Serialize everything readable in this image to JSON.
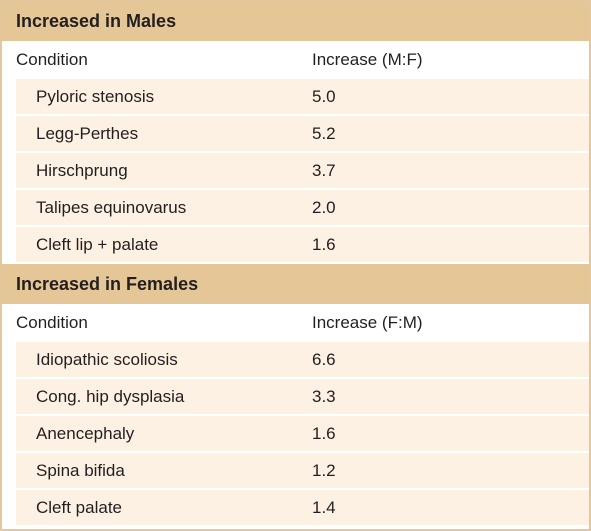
{
  "sections": [
    {
      "title": "Increased in Males",
      "columns": [
        "Condition",
        "Increase (M:F)"
      ],
      "rows": [
        [
          "Pyloric stenosis",
          "5.0"
        ],
        [
          "Legg-Perthes",
          "5.2"
        ],
        [
          "Hirschprung",
          "3.7"
        ],
        [
          "Talipes equinovarus",
          "2.0"
        ],
        [
          "Cleft lip + palate",
          "1.6"
        ]
      ]
    },
    {
      "title": "Increased in Females",
      "columns": [
        "Condition",
        "Increase (F:M)"
      ],
      "rows": [
        [
          "Idiopathic scoliosis",
          "6.6"
        ],
        [
          "Cong. hip dysplasia",
          "3.3"
        ],
        [
          "Anencephaly",
          "1.6"
        ],
        [
          "Spina bifida",
          "1.2"
        ],
        [
          "Cleft palate",
          "1.4"
        ]
      ]
    }
  ]
}
